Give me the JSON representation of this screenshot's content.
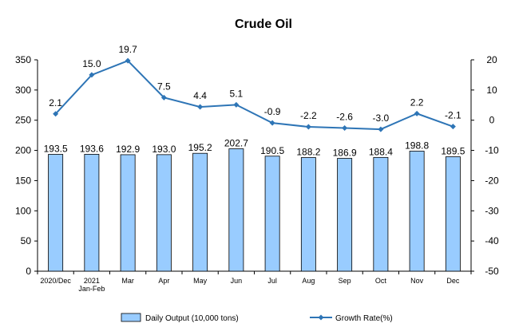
{
  "chart_data": {
    "type": "bar",
    "title": "Crude Oil",
    "categories": [
      [
        "2020/Dec"
      ],
      [
        "2021",
        "Jan-Feb"
      ],
      [
        "Mar"
      ],
      [
        "Apr"
      ],
      [
        "May"
      ],
      [
        "Jun"
      ],
      [
        "Jul"
      ],
      [
        "Aug"
      ],
      [
        "Sep"
      ],
      [
        "Oct"
      ],
      [
        "Nov"
      ],
      [
        "Dec"
      ]
    ],
    "series": [
      {
        "name": "Daily Output (10,000 tons)",
        "type": "bar",
        "axis": "left",
        "color": "#99CCFF",
        "values": [
          193.5,
          193.6,
          192.9,
          193.0,
          195.2,
          202.7,
          190.5,
          188.2,
          186.9,
          188.4,
          198.8,
          189.5
        ],
        "labels": [
          "193.5",
          "193.6",
          "192.9",
          "193.0",
          "195.2",
          "202.7",
          "190.5",
          "188.2",
          "186.9",
          "188.4",
          "198.8",
          "189.5"
        ]
      },
      {
        "name": "Growth Rate(%)",
        "type": "line",
        "axis": "right",
        "color": "#2E75B6",
        "values": [
          2.1,
          15.0,
          19.7,
          7.5,
          4.4,
          5.1,
          -0.9,
          -2.2,
          -2.6,
          -3.0,
          2.2,
          -2.1
        ],
        "labels": [
          "2.1",
          "15.0",
          "19.7",
          "7.5",
          "4.4",
          "5.1",
          "-0.9",
          "-2.2",
          "-2.6",
          "-3.0",
          "2.2",
          "-2.1"
        ]
      }
    ],
    "y_left": {
      "min": 0,
      "max": 350,
      "step": 50,
      "ticks": [
        "0",
        "50",
        "100",
        "150",
        "200",
        "250",
        "300",
        "350"
      ]
    },
    "y_right": {
      "min": -50,
      "max": 20,
      "step": 10,
      "ticks": [
        "-50",
        "-40",
        "-30",
        "-20",
        "-10",
        "0",
        "10",
        "20"
      ]
    },
    "grid": false,
    "legend_position": "bottom"
  }
}
